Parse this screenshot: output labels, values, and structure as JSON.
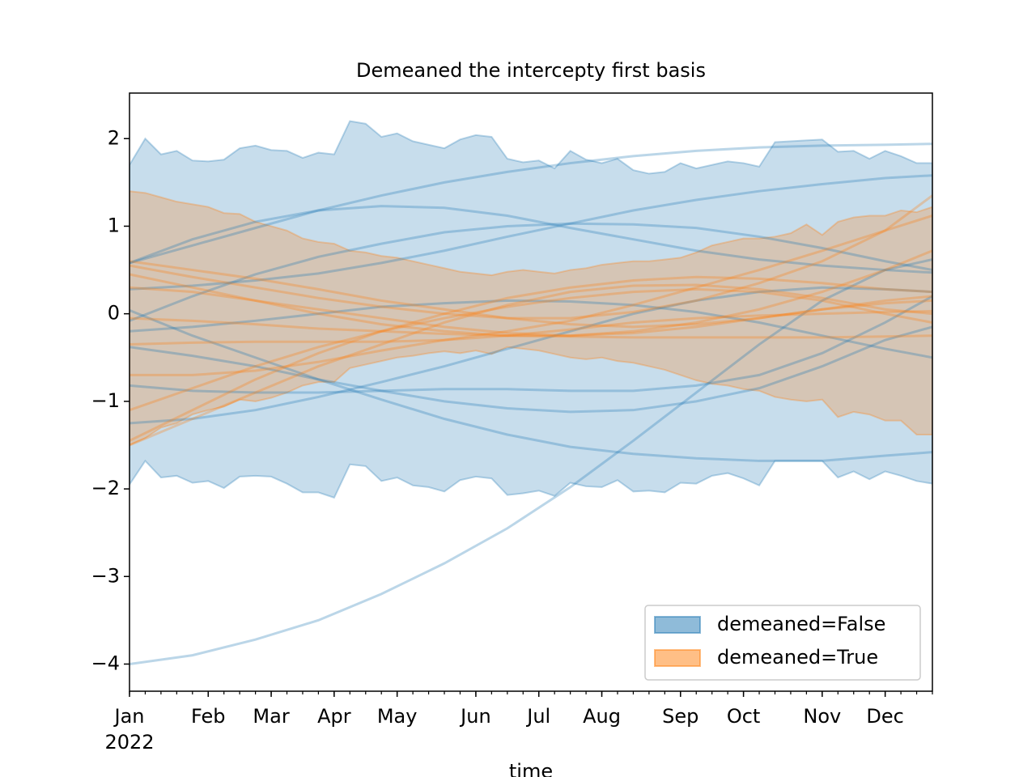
{
  "chart_data": {
    "type": "line",
    "title": "Demeaned the intercepty first basis",
    "x_label": "time",
    "x_year_label": "2022",
    "x": [
      0,
      1,
      2,
      3,
      4,
      5,
      6,
      7,
      8,
      9,
      10,
      11,
      12,
      13,
      14,
      15,
      16,
      17,
      18,
      19,
      20,
      21,
      22,
      23,
      24,
      25,
      26,
      27,
      28,
      29,
      30,
      31,
      32,
      33,
      34,
      35,
      36,
      37,
      38,
      39,
      40,
      41,
      42,
      43,
      44,
      45,
      46,
      47,
      48,
      49,
      50,
      51
    ],
    "line_x": [
      0,
      4,
      8,
      12,
      16,
      20,
      24,
      28,
      32,
      36,
      40,
      44,
      48,
      51
    ],
    "xlim": [
      0,
      51
    ],
    "xticks": [
      {
        "value": 0,
        "label": "Jan"
      },
      {
        "value": 5,
        "label": "Feb"
      },
      {
        "value": 9,
        "label": "Mar"
      },
      {
        "value": 13,
        "label": "Apr"
      },
      {
        "value": 17,
        "label": "May"
      },
      {
        "value": 22,
        "label": "Jun"
      },
      {
        "value": 26,
        "label": "Jul"
      },
      {
        "value": 30,
        "label": "Aug"
      },
      {
        "value": 35,
        "label": "Sep"
      },
      {
        "value": 39,
        "label": "Oct"
      },
      {
        "value": 44,
        "label": "Nov"
      },
      {
        "value": 48,
        "label": "Dec"
      }
    ],
    "ylim": [
      -4.31,
      2.52
    ],
    "yticks": [
      {
        "value": -4,
        "label": "−4"
      },
      {
        "value": -3,
        "label": "−3"
      },
      {
        "value": -2,
        "label": "−2"
      },
      {
        "value": -1,
        "label": "−1"
      },
      0,
      1,
      2
    ],
    "legend": "lower right",
    "series": [
      {
        "name": "demeaned=False",
        "color": "#1f77b4",
        "upper": [
          1.7,
          2.0,
          1.82,
          1.86,
          1.75,
          1.74,
          1.76,
          1.89,
          1.92,
          1.87,
          1.86,
          1.78,
          1.84,
          1.82,
          2.2,
          2.17,
          2.02,
          2.06,
          1.97,
          1.93,
          1.89,
          1.99,
          2.04,
          2.02,
          1.77,
          1.73,
          1.75,
          1.66,
          1.86,
          1.76,
          1.72,
          1.77,
          1.64,
          1.6,
          1.62,
          1.72,
          1.66,
          1.7,
          1.74,
          1.72,
          1.68,
          1.96,
          1.97,
          1.98,
          1.99,
          1.85,
          1.86,
          1.77,
          1.86,
          1.8,
          1.72,
          1.72
        ],
        "lower": [
          -1.95,
          -1.68,
          -1.87,
          -1.85,
          -1.93,
          -1.91,
          -1.99,
          -1.86,
          -1.85,
          -1.86,
          -1.94,
          -2.04,
          -2.04,
          -2.1,
          -1.72,
          -1.74,
          -1.91,
          -1.87,
          -1.96,
          -1.98,
          -2.03,
          -1.9,
          -1.86,
          -1.88,
          -2.07,
          -2.05,
          -2.02,
          -2.08,
          -1.93,
          -1.97,
          -1.98,
          -1.9,
          -2.03,
          -2.02,
          -2.04,
          -1.93,
          -1.94,
          -1.85,
          -1.82,
          -1.88,
          -1.96,
          -1.68,
          -1.68,
          -1.68,
          -1.68,
          -1.87,
          -1.8,
          -1.89,
          -1.8,
          -1.85,
          -1.91,
          -1.94
        ],
        "lines": [
          [
            -4.0,
            -3.9,
            -3.72,
            -3.5,
            -3.2,
            -2.85,
            -2.45,
            -1.98,
            -1.45,
            -0.9,
            -0.35,
            0.15,
            0.5,
            0.62
          ],
          [
            0.58,
            0.78,
            0.98,
            1.18,
            1.35,
            1.5,
            1.62,
            1.72,
            1.8,
            1.86,
            1.9,
            1.92,
            1.93,
            1.94
          ],
          [
            0.58,
            0.85,
            1.05,
            1.18,
            1.23,
            1.21,
            1.12,
            0.98,
            0.85,
            0.72,
            0.62,
            0.55,
            0.5,
            0.47
          ],
          [
            0.04,
            -0.25,
            -0.5,
            -0.75,
            -0.98,
            -1.2,
            -1.38,
            -1.52,
            -1.6,
            -1.65,
            -1.68,
            -1.68,
            -1.62,
            -1.58
          ],
          [
            -0.08,
            0.2,
            0.45,
            0.65,
            0.8,
            0.93,
            1.0,
            1.03,
            1.02,
            0.98,
            0.88,
            0.75,
            0.6,
            0.5
          ],
          [
            0.28,
            0.32,
            0.38,
            0.46,
            0.58,
            0.72,
            0.88,
            1.03,
            1.18,
            1.3,
            1.4,
            1.48,
            1.55,
            1.58
          ],
          [
            -0.2,
            -0.15,
            -0.08,
            0,
            0.08,
            0.12,
            0.15,
            0.14,
            0.1,
            0.02,
            -0.1,
            -0.25,
            -0.4,
            -0.5
          ],
          [
            -1.25,
            -1.2,
            -1.1,
            -0.95,
            -0.78,
            -0.6,
            -0.4,
            -0.2,
            0,
            0.15,
            0.25,
            0.3,
            0.28,
            0.25
          ],
          [
            -0.38,
            -0.48,
            -0.6,
            -0.75,
            -0.88,
            -1.0,
            -1.08,
            -1.12,
            -1.1,
            -1.0,
            -0.85,
            -0.6,
            -0.3,
            -0.15
          ],
          [
            -0.82,
            -0.88,
            -0.9,
            -0.9,
            -0.88,
            -0.86,
            -0.86,
            -0.88,
            -0.88,
            -0.82,
            -0.7,
            -0.45,
            -0.1,
            0.2
          ]
        ]
      },
      {
        "name": "demeaned=True",
        "color": "#ff7f0e",
        "upper": [
          1.4,
          1.38,
          1.33,
          1.28,
          1.25,
          1.22,
          1.15,
          1.14,
          1.05,
          1.0,
          0.95,
          0.86,
          0.82,
          0.8,
          0.72,
          0.7,
          0.66,
          0.64,
          0.6,
          0.56,
          0.52,
          0.48,
          0.46,
          0.44,
          0.48,
          0.5,
          0.48,
          0.46,
          0.5,
          0.52,
          0.56,
          0.58,
          0.6,
          0.6,
          0.62,
          0.64,
          0.7,
          0.78,
          0.82,
          0.86,
          0.86,
          0.88,
          0.92,
          1.02,
          0.9,
          1.05,
          1.1,
          1.12,
          1.12,
          1.18,
          1.16,
          1.22
        ],
        "lower": [
          -1.5,
          -1.42,
          -1.3,
          -1.25,
          -1.15,
          -1.1,
          -1.06,
          -0.98,
          -1.0,
          -0.96,
          -0.9,
          -0.82,
          -0.78,
          -0.78,
          -0.62,
          -0.58,
          -0.54,
          -0.5,
          -0.48,
          -0.45,
          -0.43,
          -0.45,
          -0.42,
          -0.46,
          -0.38,
          -0.4,
          -0.42,
          -0.46,
          -0.5,
          -0.52,
          -0.5,
          -0.54,
          -0.56,
          -0.6,
          -0.64,
          -0.7,
          -0.76,
          -0.8,
          -0.82,
          -0.86,
          -0.88,
          -0.95,
          -0.98,
          -1.0,
          -0.98,
          -1.18,
          -1.12,
          -1.15,
          -1.22,
          -1.22,
          -1.38,
          -1.38
        ],
        "lines": [
          [
            -1.5,
            -1.2,
            -0.9,
            -0.6,
            -0.35,
            -0.1,
            0.1,
            0.25,
            0.32,
            0.33,
            0.28,
            0.18,
            0.05,
            0.0
          ],
          [
            -1.45,
            -1.1,
            -0.75,
            -0.45,
            -0.2,
            0.0,
            0.18,
            0.3,
            0.38,
            0.42,
            0.4,
            0.35,
            0.28,
            0.25
          ],
          [
            0.6,
            0.5,
            0.4,
            0.28,
            0.15,
            0.05,
            -0.05,
            -0.12,
            -0.15,
            -0.12,
            -0.05,
            0.05,
            0.15,
            0.2
          ],
          [
            0.55,
            0.42,
            0.3,
            0.18,
            0.08,
            0.0,
            -0.05,
            -0.05,
            0.02,
            0.15,
            0.35,
            0.6,
            0.95,
            1.35
          ],
          [
            -0.7,
            -0.7,
            -0.65,
            -0.55,
            -0.42,
            -0.3,
            -0.2,
            -0.08,
            0.1,
            0.3,
            0.5,
            0.72,
            0.95,
            1.12
          ],
          [
            0.45,
            0.3,
            0.15,
            0.0,
            -0.12,
            -0.2,
            -0.25,
            -0.25,
            -0.2,
            -0.1,
            0.05,
            0.25,
            0.5,
            0.72
          ],
          [
            -0.05,
            -0.08,
            -0.12,
            -0.17,
            -0.2,
            -0.23,
            -0.25,
            -0.26,
            -0.27,
            -0.27,
            -0.27,
            -0.27,
            -0.26,
            -0.25
          ],
          [
            -1.1,
            -0.85,
            -0.6,
            -0.38,
            -0.2,
            -0.05,
            0.08,
            0.18,
            0.25,
            0.28,
            0.25,
            0.15,
            0.0,
            -0.1
          ],
          [
            0.3,
            0.25,
            0.15,
            0.05,
            -0.05,
            -0.15,
            -0.22,
            -0.25,
            -0.22,
            -0.15,
            -0.05,
            0.05,
            0.12,
            0.15
          ],
          [
            -0.35,
            -0.33,
            -0.32,
            -0.32,
            -0.32,
            -0.3,
            -0.25,
            -0.18,
            -0.1,
            -0.05,
            -0.02,
            0.0,
            0.02,
            0.03
          ]
        ]
      }
    ]
  }
}
